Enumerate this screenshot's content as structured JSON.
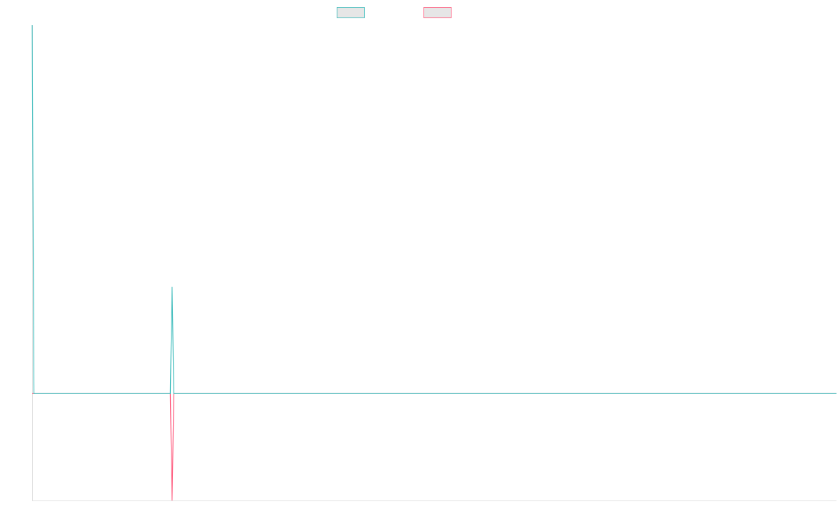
{
  "chart_data": {
    "type": "line",
    "x": [
      0,
      1,
      79,
      80,
      81,
      460
    ],
    "xlim": [
      0,
      460
    ],
    "ylim": [
      -29,
      100
    ],
    "series": [
      {
        "color": "#4bc0c0",
        "values": [
          100,
          0,
          0,
          29,
          0,
          0
        ]
      },
      {
        "color": "#ff6384",
        "values": [
          0,
          0,
          0,
          -29,
          0,
          0
        ]
      }
    ]
  }
}
